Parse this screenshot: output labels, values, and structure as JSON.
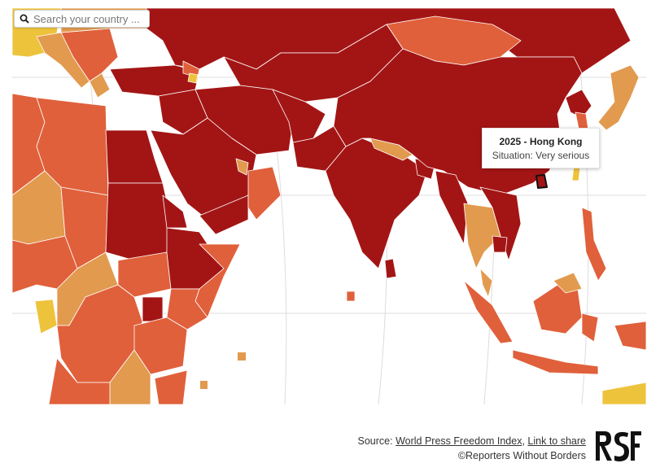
{
  "search": {
    "placeholder": "Search your country ...",
    "icon": "search-icon"
  },
  "tooltip": {
    "title": "2025 - Hong Kong",
    "situation": "Situation: Very serious"
  },
  "footer": {
    "source_prefix": "Source: ",
    "source_link": "World Press Freedom Index",
    "separator": ", ",
    "share_link": "Link to share",
    "copyright": "©Reporters Without Borders"
  },
  "logo": {
    "icon": "rsf-logo-icon",
    "text": "RSF"
  },
  "legend_colors": {
    "very_serious": "#a31515",
    "difficult": "#e0603b",
    "problematic": "#e29a4f",
    "satisfactory": "#eec33c",
    "good": "#f4e25c"
  }
}
